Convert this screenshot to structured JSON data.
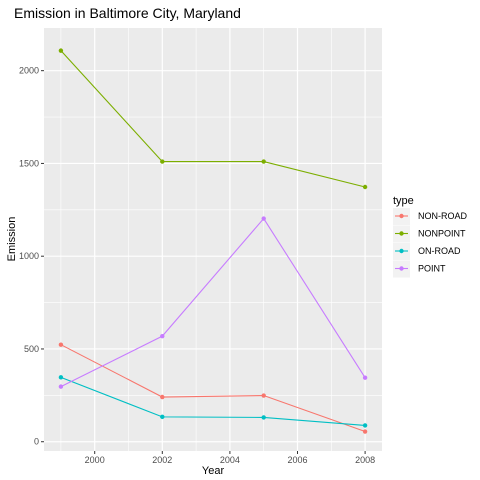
{
  "chart_data": {
    "type": "line",
    "title": "Emission in Baltimore City, Maryland",
    "xlabel": "Year",
    "ylabel": "Emission",
    "x": [
      1999,
      2002,
      2005,
      2008
    ],
    "xlim": [
      1998.5,
      2008.5
    ],
    "ylim": [
      -50,
      2230
    ],
    "x_ticks": [
      2000,
      2002,
      2004,
      2006,
      2008
    ],
    "y_ticks": [
      0,
      500,
      1000,
      1500,
      2000
    ],
    "grid": true,
    "legend": {
      "title": "type",
      "placement": "right"
    },
    "series": [
      {
        "name": "NON-ROAD",
        "color": "#F8766D",
        "values": [
          523,
          241,
          249,
          55
        ]
      },
      {
        "name": "NONPOINT",
        "color": "#7CAE00",
        "values": [
          2108,
          1510,
          1510,
          1373
        ]
      },
      {
        "name": "ON-ROAD",
        "color": "#00BFC4",
        "values": [
          347,
          134,
          131,
          88
        ]
      },
      {
        "name": "POINT",
        "color": "#C77CFF",
        "values": [
          297,
          569,
          1203,
          345
        ]
      }
    ]
  }
}
